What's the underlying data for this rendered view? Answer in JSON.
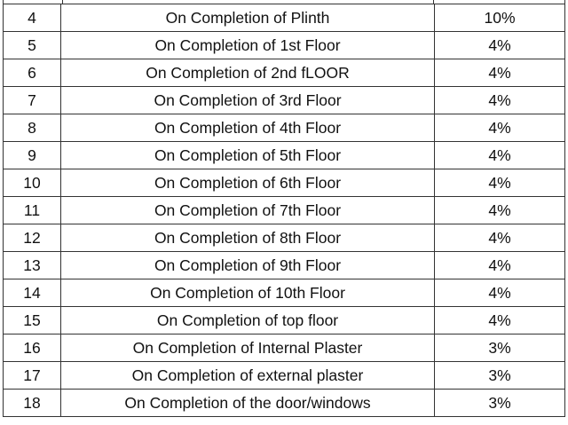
{
  "table": {
    "rows": [
      {
        "no": "4",
        "stage": "On Completion of Plinth",
        "percent": "10%"
      },
      {
        "no": "5",
        "stage": "On Completion of 1st Floor",
        "percent": "4%"
      },
      {
        "no": "6",
        "stage": "On Completion of 2nd fLOOR",
        "percent": "4%"
      },
      {
        "no": "7",
        "stage": "On Completion of 3rd Floor",
        "percent": "4%"
      },
      {
        "no": "8",
        "stage": "On Completion of 4th Floor",
        "percent": "4%"
      },
      {
        "no": "9",
        "stage": "On Completion of 5th Floor",
        "percent": "4%"
      },
      {
        "no": "10",
        "stage": "On Completion of 6th Floor",
        "percent": "4%"
      },
      {
        "no": "11",
        "stage": "On Completion of 7th Floor",
        "percent": "4%"
      },
      {
        "no": "12",
        "stage": "On Completion of 8th Floor",
        "percent": "4%"
      },
      {
        "no": "13",
        "stage": "On Completion of 9th Floor",
        "percent": "4%"
      },
      {
        "no": "14",
        "stage": "On Completion of 10th Floor",
        "percent": "4%"
      },
      {
        "no": "15",
        "stage": "On Completion of top floor",
        "percent": "4%"
      },
      {
        "no": "16",
        "stage": "On Completion of Internal Plaster",
        "percent": "3%"
      },
      {
        "no": "17",
        "stage": "On Completion of external plaster",
        "percent": "3%"
      },
      {
        "no": "18",
        "stage": "On Completion of the door/windows",
        "percent": "3%"
      }
    ]
  }
}
